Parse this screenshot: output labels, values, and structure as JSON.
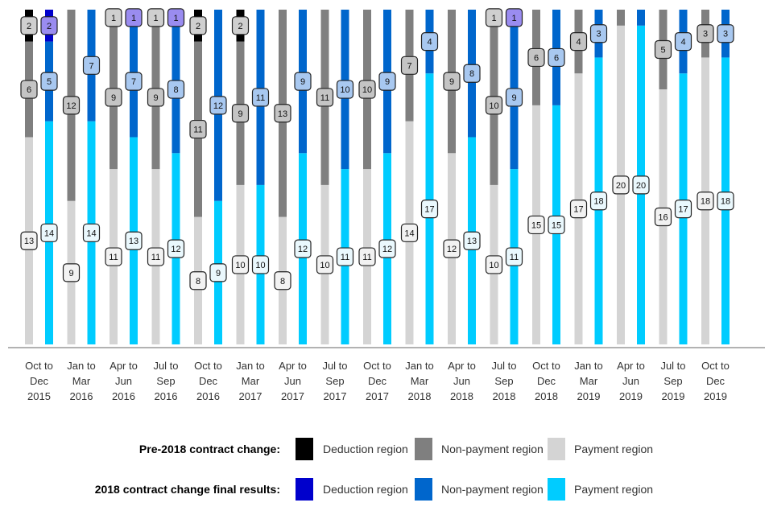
{
  "chart_data": {
    "type": "bar",
    "stacked": true,
    "stack_percent": true,
    "categories": [
      [
        "Oct to",
        "Dec",
        "2015"
      ],
      [
        "Jan to",
        "Mar",
        "2016"
      ],
      [
        "Apr to",
        "Jun",
        "2016"
      ],
      [
        "Jul to",
        "Sep",
        "2016"
      ],
      [
        "Oct to",
        "Dec",
        "2016"
      ],
      [
        "Jan to",
        "Mar",
        "2017"
      ],
      [
        "Apr to",
        "Jun",
        "2017"
      ],
      [
        "Jul to",
        "Sep",
        "2017"
      ],
      [
        "Oct to",
        "Dec",
        "2017"
      ],
      [
        "Jan to",
        "Mar",
        "2018"
      ],
      [
        "Apr to",
        "Jun",
        "2018"
      ],
      [
        "Jul to",
        "Sep",
        "2018"
      ],
      [
        "Oct to",
        "Dec",
        "2018"
      ],
      [
        "Jan to",
        "Mar",
        "2019"
      ],
      [
        "Apr to",
        "Jun",
        "2019"
      ],
      [
        "Jul to",
        "Sep",
        "2019"
      ],
      [
        "Oct to",
        "Dec",
        "2019"
      ]
    ],
    "groups": [
      {
        "name": "Pre-2018 contract change:",
        "series": [
          {
            "name": "Payment region",
            "color": "#d4d4d4",
            "values": [
              13,
              9,
              11,
              11,
              8,
              10,
              8,
              10,
              11,
              14,
              12,
              10,
              15,
              17,
              20,
              16,
              18
            ]
          },
          {
            "name": "Non-payment region",
            "color": "#7f7f7f",
            "values": [
              6,
              12,
              9,
              9,
              11,
              9,
              13,
              11,
              10,
              7,
              9,
              10,
              6,
              4,
              1,
              5,
              3
            ]
          },
          {
            "name": "Deduction region",
            "color": "#000000",
            "values": [
              2,
              0,
              1,
              1,
              2,
              2,
              0,
              0,
              0,
              0,
              0,
              1,
              0,
              0,
              0,
              0,
              0
            ]
          }
        ]
      },
      {
        "name": "2018 contract change final results:",
        "series": [
          {
            "name": "Payment region",
            "color": "#00ccff",
            "values": [
              14,
              14,
              13,
              12,
              9,
              10,
              12,
              11,
              12,
              17,
              13,
              11,
              15,
              18,
              20,
              17,
              18
            ]
          },
          {
            "name": "Non-payment region",
            "color": "#0066cc",
            "values": [
              5,
              7,
              7,
              8,
              12,
              11,
              9,
              10,
              9,
              4,
              8,
              9,
              6,
              3,
              1,
              4,
              3
            ]
          },
          {
            "name": "Deduction region",
            "color": "#0000cc",
            "values": [
              2,
              0,
              1,
              1,
              0,
              0,
              0,
              0,
              0,
              0,
              0,
              1,
              0,
              0,
              0,
              0,
              0
            ]
          }
        ]
      }
    ],
    "hidden_labels": {
      "pre": {
        "Non-payment region": [
          14
        ]
      },
      "post": {
        "Non-payment region": [
          14
        ]
      }
    },
    "label_colors": {
      "Payment region": "#f2f2f2",
      "Non-payment region": "#c4c4c4",
      "Deduction region": "#cfcfcf",
      "post_Payment region": "#eaf8fd",
      "post_Non-payment region": "#a8c8f0",
      "post_Deduction region": "#9a8cf0"
    },
    "ylim": [
      0,
      100
    ],
    "grid": false,
    "legend_position": "bottom"
  },
  "legend": {
    "rows": [
      {
        "title": "Pre-2018 contract change:",
        "items": [
          {
            "label": "Deduction region",
            "color": "#000000"
          },
          {
            "label": "Non-payment region",
            "color": "#7f7f7f"
          },
          {
            "label": "Payment region",
            "color": "#d4d4d4"
          }
        ]
      },
      {
        "title": "2018 contract change final results:",
        "items": [
          {
            "label": "Deduction region",
            "color": "#0000cc"
          },
          {
            "label": "Non-payment region",
            "color": "#0066cc"
          },
          {
            "label": "Payment region",
            "color": "#00ccff"
          }
        ]
      }
    ]
  }
}
